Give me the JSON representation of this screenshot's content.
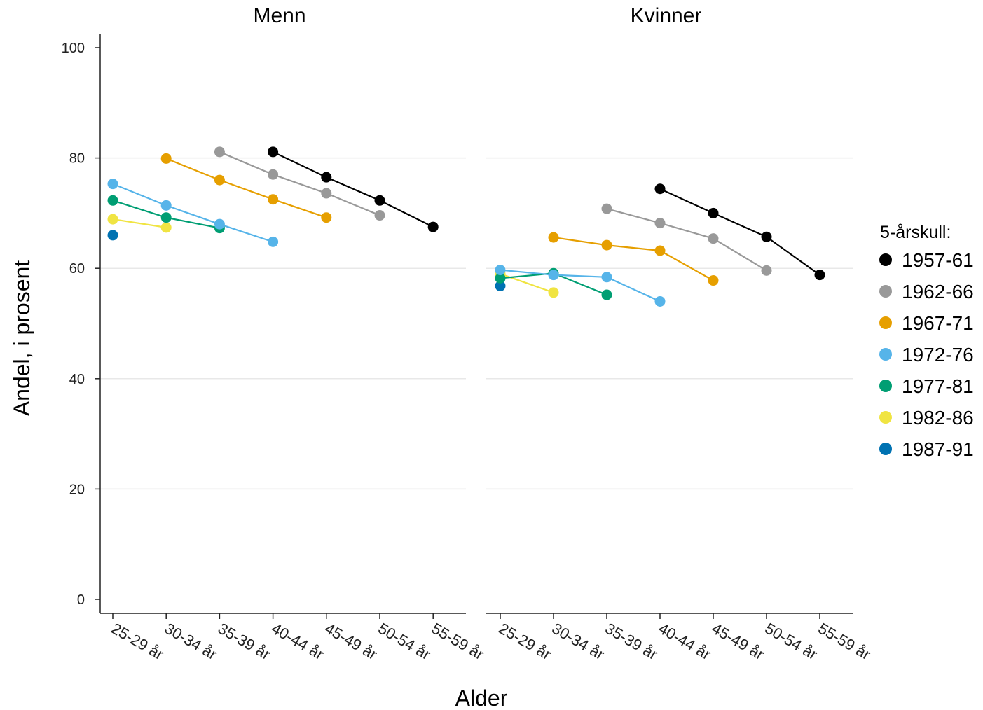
{
  "chart_data": {
    "type": "line",
    "xlabel": "Alder",
    "ylabel": "Andel, i prosent",
    "ylim": [
      0,
      100
    ],
    "yticks": [
      0,
      20,
      40,
      60,
      80,
      100
    ],
    "categories": [
      "25-29 år",
      "30-34 år",
      "35-39 år",
      "40-44 år",
      "45-49 år",
      "50-54 år",
      "55-59 år"
    ],
    "grid": "horizontal",
    "legend": {
      "title": "5-årskull:",
      "placement": "right"
    },
    "colors": {
      "1957-61": "#000000",
      "1962-66": "#999999",
      "1967-71": "#E69F00",
      "1972-76": "#56B4E9",
      "1977-81": "#009E73",
      "1982-86": "#F0E442",
      "1987-91": "#0072B2"
    },
    "legend_order": [
      "1957-61",
      "1962-66",
      "1967-71",
      "1972-76",
      "1977-81",
      "1982-86",
      "1987-91"
    ],
    "facets": [
      {
        "title": "Menn",
        "series": [
          {
            "name": "1987-91",
            "values": [
              66.0,
              null,
              null,
              null,
              null,
              null,
              null
            ]
          },
          {
            "name": "1982-86",
            "values": [
              68.9,
              67.4,
              null,
              null,
              null,
              null,
              null
            ]
          },
          {
            "name": "1977-81",
            "values": [
              72.3,
              69.2,
              67.3,
              null,
              null,
              null,
              null
            ]
          },
          {
            "name": "1972-76",
            "values": [
              75.3,
              71.4,
              68.0,
              64.8,
              null,
              null,
              null
            ]
          },
          {
            "name": "1967-71",
            "values": [
              null,
              79.9,
              76.0,
              72.5,
              69.2,
              null,
              null
            ]
          },
          {
            "name": "1962-66",
            "values": [
              null,
              null,
              81.1,
              77.0,
              73.6,
              69.6,
              null
            ]
          },
          {
            "name": "1957-61",
            "values": [
              null,
              null,
              null,
              81.1,
              76.5,
              72.3,
              67.5
            ]
          }
        ]
      },
      {
        "title": "Kvinner",
        "series": [
          {
            "name": "1987-91",
            "values": [
              56.8,
              null,
              null,
              null,
              null,
              null,
              null
            ]
          },
          {
            "name": "1982-86",
            "values": [
              59.0,
              55.6,
              null,
              null,
              null,
              null,
              null
            ]
          },
          {
            "name": "1977-81",
            "values": [
              58.2,
              59.1,
              55.2,
              null,
              null,
              null,
              null
            ]
          },
          {
            "name": "1972-76",
            "values": [
              59.7,
              58.8,
              58.4,
              54.0,
              null,
              null,
              null
            ]
          },
          {
            "name": "1967-71",
            "values": [
              null,
              65.6,
              64.2,
              63.2,
              57.8,
              null,
              null
            ]
          },
          {
            "name": "1962-66",
            "values": [
              null,
              null,
              70.8,
              68.2,
              65.4,
              59.6,
              null
            ]
          },
          {
            "name": "1957-61",
            "values": [
              null,
              null,
              null,
              74.4,
              70.0,
              65.7,
              58.8
            ]
          }
        ]
      }
    ]
  }
}
